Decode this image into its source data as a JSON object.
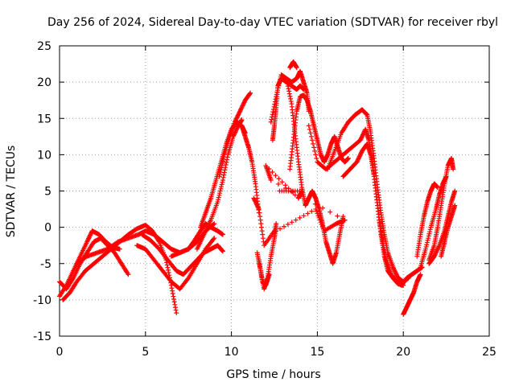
{
  "chart_data": {
    "type": "scatter",
    "title": "Day 256 of 2024, Sidereal Day-to-day VTEC variation (SDTVAR) for receiver rbyl",
    "xlabel": "GPS time / hours",
    "ylabel": "SDTVAR / TECUs",
    "xlim": [
      0,
      25
    ],
    "ylim": [
      -15,
      25
    ],
    "xticks": [
      "0",
      "5",
      "10",
      "15",
      "20",
      "25"
    ],
    "yticks": [
      "-15",
      "-10",
      "-5",
      "0",
      "5",
      "10",
      "15",
      "20",
      "25"
    ],
    "grid": true,
    "marker": "+",
    "color": "#ff0000",
    "series": [
      {
        "name": "track-1",
        "points": [
          [
            0.0,
            -7.5
          ],
          [
            0.4,
            -8.5
          ],
          [
            0.8,
            -7.0
          ],
          [
            1.2,
            -5.0
          ],
          [
            1.6,
            -3.5
          ],
          [
            2.0,
            -2.0
          ],
          [
            2.4,
            -1.5
          ],
          [
            2.8,
            -2.5
          ],
          [
            3.2,
            -3.5
          ],
          [
            3.6,
            -5.0
          ],
          [
            4.0,
            -6.5
          ]
        ]
      },
      {
        "name": "track-2",
        "points": [
          [
            0.0,
            -9.5
          ],
          [
            0.4,
            -8.0
          ],
          [
            0.8,
            -6.0
          ],
          [
            1.2,
            -4.0
          ],
          [
            1.6,
            -2.0
          ],
          [
            1.9,
            -0.5
          ],
          [
            2.3,
            -1.0
          ],
          [
            2.7,
            -2.0
          ],
          [
            3.1,
            -2.8
          ],
          [
            3.5,
            -3.0
          ]
        ]
      },
      {
        "name": "track-3",
        "points": [
          [
            0.2,
            -10.0
          ],
          [
            0.6,
            -9.0
          ],
          [
            1.0,
            -7.5
          ],
          [
            1.5,
            -6.0
          ],
          [
            2.0,
            -5.0
          ],
          [
            2.5,
            -4.0
          ],
          [
            3.0,
            -3.0
          ],
          [
            3.5,
            -2.0
          ],
          [
            4.0,
            -1.0
          ],
          [
            4.5,
            -0.2
          ],
          [
            5.0,
            0.3
          ],
          [
            5.4,
            -0.5
          ],
          [
            5.8,
            -2.0
          ],
          [
            6.2,
            -4.5
          ],
          [
            6.5,
            -8.0
          ],
          [
            6.8,
            -11.8
          ]
        ]
      },
      {
        "name": "track-4",
        "points": [
          [
            1.0,
            -5.0
          ],
          [
            1.6,
            -4.0
          ],
          [
            2.2,
            -3.5
          ],
          [
            2.8,
            -3.0
          ],
          [
            3.4,
            -2.0
          ],
          [
            4.0,
            -1.5
          ],
          [
            4.6,
            -1.0
          ],
          [
            5.0,
            -0.5
          ],
          [
            5.5,
            -1.0
          ],
          [
            6.0,
            -2.0
          ],
          [
            6.5,
            -3.0
          ],
          [
            7.0,
            -3.5
          ],
          [
            7.5,
            -3.0
          ],
          [
            8.0,
            -2.0
          ],
          [
            8.5,
            -0.5
          ],
          [
            9.0,
            0.5
          ]
        ]
      },
      {
        "name": "track-5",
        "points": [
          [
            4.5,
            -2.5
          ],
          [
            5.0,
            -3.0
          ],
          [
            5.5,
            -4.5
          ],
          [
            6.0,
            -6.0
          ],
          [
            6.5,
            -7.5
          ],
          [
            7.0,
            -8.5
          ],
          [
            7.5,
            -7.0
          ],
          [
            8.0,
            -5.0
          ],
          [
            8.5,
            -3.0
          ],
          [
            9.0,
            -1.5
          ]
        ]
      },
      {
        "name": "track-6",
        "points": [
          [
            4.8,
            -1.0
          ],
          [
            5.3,
            -1.8
          ],
          [
            5.8,
            -3.0
          ],
          [
            6.3,
            -4.5
          ],
          [
            6.8,
            -6.0
          ],
          [
            7.2,
            -6.5
          ],
          [
            7.6,
            -5.5
          ],
          [
            8.0,
            -4.5
          ],
          [
            8.4,
            -3.5
          ],
          [
            8.8,
            -3.0
          ],
          [
            9.2,
            -2.5
          ],
          [
            9.5,
            -3.3
          ]
        ]
      },
      {
        "name": "track-7",
        "points": [
          [
            6.5,
            -4.0
          ],
          [
            7.0,
            -3.5
          ],
          [
            7.5,
            -3.0
          ],
          [
            7.8,
            -2.0
          ],
          [
            8.2,
            -0.5
          ],
          [
            8.5,
            0.5
          ],
          [
            8.8,
            0.0
          ],
          [
            9.2,
            -0.5
          ],
          [
            9.5,
            -1.0
          ]
        ]
      },
      {
        "name": "track-8",
        "points": [
          [
            8.2,
            0.0
          ],
          [
            8.5,
            2.0
          ],
          [
            8.8,
            4.0
          ],
          [
            9.1,
            6.5
          ],
          [
            9.4,
            9.0
          ],
          [
            9.7,
            11.5
          ],
          [
            10.0,
            13.5
          ],
          [
            10.3,
            14.5
          ],
          [
            10.6,
            14.0
          ],
          [
            10.8,
            13.0
          ]
        ]
      },
      {
        "name": "track-9",
        "points": [
          [
            8.0,
            -3.0
          ],
          [
            8.4,
            -1.0
          ],
          [
            8.8,
            1.0
          ],
          [
            9.2,
            3.5
          ],
          [
            9.5,
            6.5
          ],
          [
            9.8,
            10.0
          ],
          [
            10.1,
            12.5
          ],
          [
            10.4,
            14.0
          ],
          [
            10.6,
            14.8
          ]
        ]
      },
      {
        "name": "track-10",
        "points": [
          [
            9.3,
            7.0
          ],
          [
            9.6,
            10.0
          ],
          [
            9.9,
            12.5
          ],
          [
            10.2,
            14.5
          ],
          [
            10.5,
            16.0
          ],
          [
            10.8,
            17.5
          ],
          [
            11.1,
            18.5
          ]
        ]
      },
      {
        "name": "track-11",
        "points": [
          [
            10.6,
            14.0
          ],
          [
            10.8,
            12.5
          ],
          [
            11.0,
            11.0
          ],
          [
            11.2,
            9.0
          ],
          [
            11.4,
            6.0
          ],
          [
            11.6,
            2.0
          ]
        ]
      },
      {
        "name": "track-12",
        "points": [
          [
            11.5,
            -3.5
          ],
          [
            11.7,
            -6.0
          ],
          [
            11.9,
            -8.5
          ],
          [
            12.1,
            -7.0
          ],
          [
            12.3,
            -4.0
          ],
          [
            12.5,
            -1.5
          ],
          [
            12.6,
            0.5
          ]
        ]
      },
      {
        "name": "track-13",
        "points": [
          [
            11.6,
            -4.5
          ],
          [
            11.8,
            -7.5
          ],
          [
            12.0,
            -8.0
          ],
          [
            12.2,
            -6.5
          ]
        ]
      },
      {
        "name": "track-14",
        "points": [
          [
            12.4,
            12.0
          ],
          [
            12.5,
            14.0
          ],
          [
            12.6,
            16.5
          ],
          [
            12.7,
            19.5
          ],
          [
            12.9,
            20.5
          ],
          [
            13.2,
            20.0
          ],
          [
            13.5,
            19.5
          ],
          [
            13.8,
            19.0
          ],
          [
            14.0,
            19.5
          ],
          [
            14.2,
            19.0
          ]
        ]
      },
      {
        "name": "track-15",
        "points": [
          [
            12.3,
            14.5
          ],
          [
            12.6,
            18.0
          ],
          [
            12.9,
            21.0
          ],
          [
            13.2,
            20.5
          ],
          [
            13.5,
            20.0
          ],
          [
            13.8,
            20.5
          ],
          [
            14.0,
            21.5
          ],
          [
            14.2,
            20.0
          ],
          [
            14.4,
            18.5
          ],
          [
            14.5,
            16.0
          ]
        ]
      },
      {
        "name": "track-16",
        "points": [
          [
            13.2,
            20.5
          ],
          [
            13.5,
            17.0
          ],
          [
            13.7,
            13.0
          ],
          [
            13.9,
            9.0
          ],
          [
            14.1,
            5.5
          ],
          [
            14.3,
            3.0
          ],
          [
            14.5,
            4.0
          ],
          [
            14.7,
            5.0
          ],
          [
            14.9,
            4.0
          ],
          [
            15.1,
            2.5
          ],
          [
            15.3,
            0.5
          ],
          [
            15.5,
            -2.0
          ],
          [
            15.7,
            -3.5
          ],
          [
            15.9,
            -5.0
          ],
          [
            16.1,
            -3.5
          ],
          [
            16.3,
            -1.0
          ],
          [
            16.5,
            1.5
          ]
        ]
      },
      {
        "name": "track-17",
        "points": [
          [
            13.4,
            8.0
          ],
          [
            13.6,
            12.0
          ],
          [
            13.8,
            16.0
          ],
          [
            14.0,
            18.0
          ],
          [
            14.2,
            18.2
          ],
          [
            14.4,
            17.5
          ],
          [
            14.6,
            16.0
          ],
          [
            14.8,
            14.0
          ],
          [
            15.0,
            12.0
          ],
          [
            15.2,
            10.0
          ],
          [
            15.4,
            9.0
          ],
          [
            15.6,
            10.0
          ],
          [
            15.8,
            11.5
          ],
          [
            16.0,
            12.5
          ],
          [
            16.2,
            11.0
          ],
          [
            16.4,
            9.5
          ],
          [
            16.6,
            9.0
          ],
          [
            16.8,
            9.5
          ]
        ]
      },
      {
        "name": "track-18",
        "points": [
          [
            13.4,
            22.0
          ],
          [
            13.6,
            22.8
          ],
          [
            13.8,
            22.0
          ]
        ]
      },
      {
        "name": "track-19",
        "points": [
          [
            14.5,
            14.0
          ],
          [
            15.0,
            9.0
          ],
          [
            15.5,
            8.0
          ],
          [
            16.0,
            9.0
          ],
          [
            16.5,
            10.0
          ],
          [
            17.0,
            11.0
          ],
          [
            17.5,
            12.0
          ],
          [
            17.8,
            13.5
          ],
          [
            18.0,
            12.0
          ],
          [
            18.2,
            9.0
          ],
          [
            18.4,
            5.0
          ],
          [
            18.6,
            1.0
          ],
          [
            18.8,
            -2.0
          ],
          [
            19.0,
            -4.5
          ],
          [
            19.3,
            -6.5
          ],
          [
            19.6,
            -7.5
          ],
          [
            19.9,
            -8.0
          ],
          [
            20.2,
            -7.0
          ],
          [
            20.5,
            -6.5
          ],
          [
            20.8,
            -6.0
          ],
          [
            21.1,
            -5.5
          ]
        ]
      },
      {
        "name": "track-20",
        "points": [
          [
            15.6,
            8.0
          ],
          [
            16.0,
            10.5
          ],
          [
            16.4,
            13.0
          ],
          [
            16.8,
            14.5
          ],
          [
            17.2,
            15.5
          ],
          [
            17.6,
            16.2
          ],
          [
            17.9,
            15.5
          ],
          [
            18.1,
            13.0
          ],
          [
            18.3,
            9.5
          ],
          [
            18.5,
            5.5
          ],
          [
            18.7,
            2.0
          ],
          [
            18.9,
            -1.0
          ],
          [
            19.1,
            -3.5
          ],
          [
            19.4,
            -5.5
          ],
          [
            19.7,
            -7.0
          ],
          [
            20.0,
            -7.5
          ],
          [
            20.3,
            -7.0
          ]
        ]
      },
      {
        "name": "track-21",
        "points": [
          [
            16.5,
            7.0
          ],
          [
            16.9,
            8.0
          ],
          [
            17.3,
            9.0
          ],
          [
            17.6,
            10.5
          ],
          [
            17.9,
            11.5
          ],
          [
            18.1,
            10.0
          ],
          [
            18.3,
            7.0
          ],
          [
            18.5,
            3.0
          ],
          [
            18.7,
            -1.0
          ],
          [
            18.9,
            -4.0
          ],
          [
            19.1,
            -6.0
          ],
          [
            19.4,
            -7.0
          ],
          [
            19.7,
            -7.8
          ],
          [
            20.0,
            -8.0
          ]
        ]
      },
      {
        "name": "track-22",
        "points": [
          [
            20.0,
            -12.0
          ],
          [
            20.2,
            -11.0
          ],
          [
            20.4,
            -10.0
          ],
          [
            20.6,
            -9.0
          ],
          [
            20.8,
            -7.5
          ],
          [
            21.0,
            -6.5
          ]
        ]
      },
      {
        "name": "track-23",
        "points": [
          [
            20.8,
            -4.0
          ],
          [
            21.0,
            -1.0
          ],
          [
            21.2,
            1.5
          ],
          [
            21.4,
            3.5
          ],
          [
            21.6,
            5.0
          ],
          [
            21.8,
            6.0
          ],
          [
            22.0,
            5.5
          ]
        ]
      },
      {
        "name": "track-24",
        "points": [
          [
            21.0,
            -5.5
          ],
          [
            21.3,
            -3.0
          ],
          [
            21.6,
            0.0
          ],
          [
            21.9,
            2.5
          ],
          [
            22.1,
            4.5
          ],
          [
            22.3,
            6.0
          ],
          [
            22.5,
            7.0
          ]
        ]
      },
      {
        "name": "track-25",
        "points": [
          [
            21.5,
            -4.5
          ],
          [
            21.8,
            -2.5
          ],
          [
            22.0,
            0.0
          ],
          [
            22.2,
            3.0
          ],
          [
            22.4,
            6.0
          ],
          [
            22.6,
            8.5
          ],
          [
            22.8,
            9.5
          ],
          [
            22.9,
            8.0
          ]
        ]
      },
      {
        "name": "track-26",
        "points": [
          [
            21.5,
            -5.0
          ],
          [
            21.8,
            -4.0
          ],
          [
            22.1,
            -2.5
          ],
          [
            22.4,
            -0.5
          ],
          [
            22.6,
            1.5
          ],
          [
            22.8,
            3.5
          ],
          [
            23.0,
            5.0
          ]
        ]
      },
      {
        "name": "track-27",
        "points": [
          [
            22.2,
            -4.0
          ],
          [
            22.4,
            -2.0
          ],
          [
            22.6,
            0.0
          ],
          [
            22.8,
            1.5
          ],
          [
            23.0,
            3.0
          ]
        ]
      },
      {
        "name": "scatter-outliers",
        "points": [
          [
            11.3,
            4.0
          ],
          [
            11.6,
            2.5
          ],
          [
            11.9,
            -2.5
          ],
          [
            12.5,
            -0.5
          ],
          [
            12.6,
            -0.5
          ],
          [
            14.9,
            2.5
          ],
          [
            15.4,
            -0.5
          ],
          [
            16.1,
            0.5
          ],
          [
            16.6,
            1.0
          ],
          [
            12.3,
            6.5
          ],
          [
            12.0,
            8.5
          ],
          [
            13.9,
            4.0
          ],
          [
            14.1,
            5.0
          ],
          [
            12.8,
            5.0
          ]
        ]
      }
    ]
  }
}
